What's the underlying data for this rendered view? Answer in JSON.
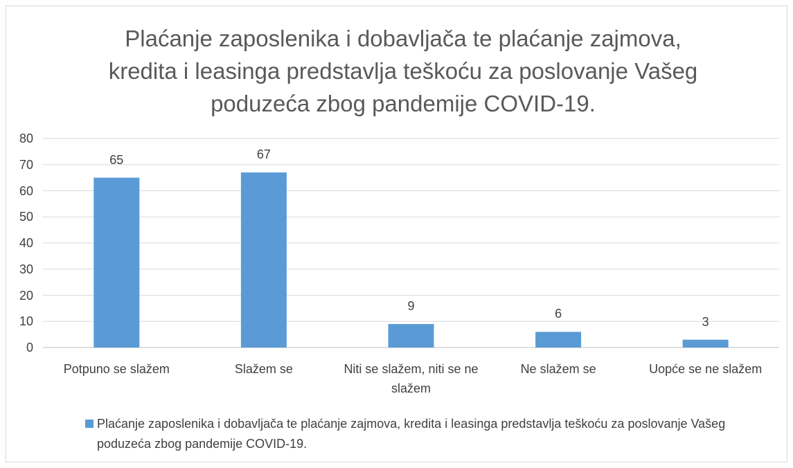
{
  "chart_data": {
    "type": "bar",
    "title": "Plaćanje zaposlenika i dobavljača te plaćanje zajmova, kredita i leasinga predstavlja teškoću za poslovanje Vašeg poduzeća zbog pandemije COVID-19.",
    "categories": [
      "Potpuno se slažem",
      "Slažem se",
      "Niti se slažem, niti se ne slažem",
      "Ne slažem se",
      "Uopće se ne slažem"
    ],
    "series": [
      {
        "name": "Plaćanje zaposlenika i dobavljača te plaćanje zajmova, kredita i leasinga predstavlja teškoću za poslovanje Vašeg poduzeća zbog pandemije COVID-19.",
        "color": "#5b9bd5",
        "values": [
          65,
          67,
          9,
          6,
          3
        ]
      }
    ],
    "ylim": [
      0,
      80
    ],
    "yticks": [
      0,
      10,
      20,
      30,
      40,
      50,
      60,
      70,
      80
    ],
    "grid": true,
    "legend": "bottom"
  }
}
